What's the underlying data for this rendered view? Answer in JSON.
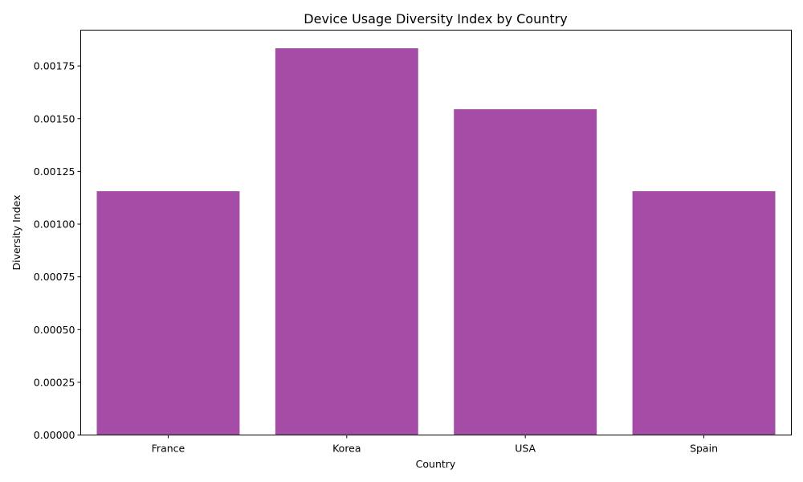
{
  "chart_data": {
    "type": "bar",
    "title": "Device Usage Diversity Index by Country",
    "xlabel": "Country",
    "ylabel": "Diversity Index",
    "categories": [
      "France",
      "Korea",
      "USA",
      "Spain"
    ],
    "values": [
      0.001156,
      0.001834,
      0.001545,
      0.001156
    ],
    "ylim": [
      0,
      0.00192
    ],
    "yticks": [
      0,
      0.00025,
      0.0005,
      0.00075,
      0.001,
      0.00125,
      0.0015,
      0.00175
    ],
    "ytick_labels": [
      "0.00000",
      "0.00025",
      "0.00050",
      "0.00075",
      "0.00100",
      "0.00125",
      "0.00150",
      "0.00175"
    ],
    "bar_color": "#a54ca6",
    "grid": false,
    "legend": "none"
  }
}
